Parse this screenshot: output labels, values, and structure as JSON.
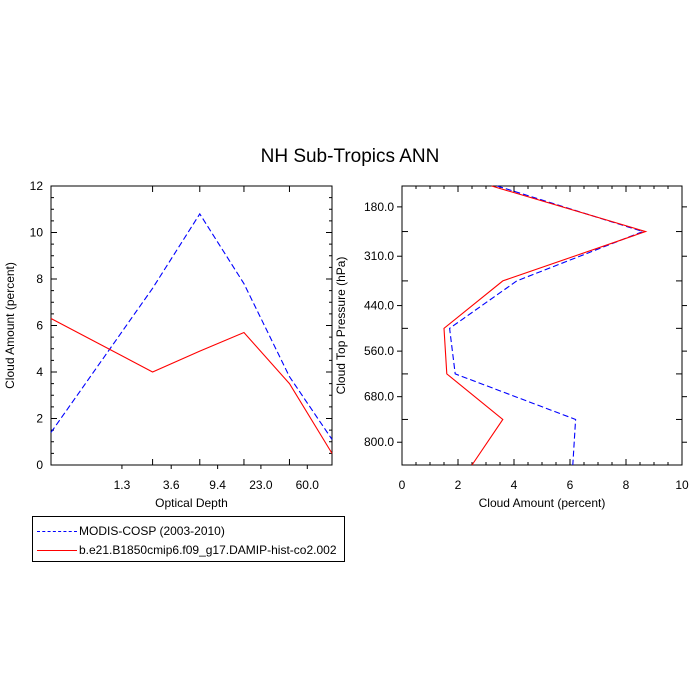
{
  "title": "NH Sub-Tropics ANN",
  "colors": {
    "obs": "#0000ff",
    "model": "#ff0000",
    "axis": "#000000"
  },
  "chart_data": [
    {
      "type": "line",
      "xlabel": "Optical Depth",
      "ylabel": "Cloud Amount (percent)",
      "categories": [
        "1.3",
        "3.6",
        "9.4",
        "23.0",
        "60.0"
      ],
      "x": [
        0.3,
        2.45,
        6.5,
        16.2,
        41.5,
        100
      ],
      "ylim": [
        0,
        12
      ],
      "yticks": [
        "0",
        "2",
        "4",
        "6",
        "8",
        "10",
        "12"
      ],
      "series": [
        {
          "name": "MODIS-COSP (2003-2010)",
          "style": "dashed",
          "values": [
            1.4,
            7.6,
            10.8,
            7.8,
            3.8,
            1.1
          ]
        },
        {
          "name": "b.e21.B1850cmip6.f09_g17.DAMIP-hist-co2.002",
          "style": "solid",
          "values": [
            6.3,
            4.0,
            4.9,
            5.7,
            3.5,
            0.5
          ]
        }
      ]
    },
    {
      "type": "line",
      "xlabel": "Cloud Amount (percent)",
      "ylabel": "Cloud Top Pressure (hPa)",
      "xlim": [
        0,
        10
      ],
      "xticks": [
        "0",
        "2",
        "4",
        "6",
        "8",
        "10"
      ],
      "yticks": [
        "180.0",
        "310.0",
        "440.0",
        "560.0",
        "680.0",
        "800.0"
      ],
      "pressure": [
        125,
        245,
        375,
        500,
        620,
        740,
        860
      ],
      "series": [
        {
          "name": "MODIS-COSP (2003-2010)",
          "style": "dashed",
          "values": [
            3.4,
            8.6,
            4.1,
            1.7,
            1.9,
            6.2,
            6.1
          ]
        },
        {
          "name": "b.e21.B1850cmip6.f09_g17.DAMIP-hist-co2.002",
          "style": "solid",
          "values": [
            3.2,
            8.7,
            3.6,
            1.5,
            1.6,
            3.6,
            2.5
          ]
        }
      ]
    }
  ]
}
